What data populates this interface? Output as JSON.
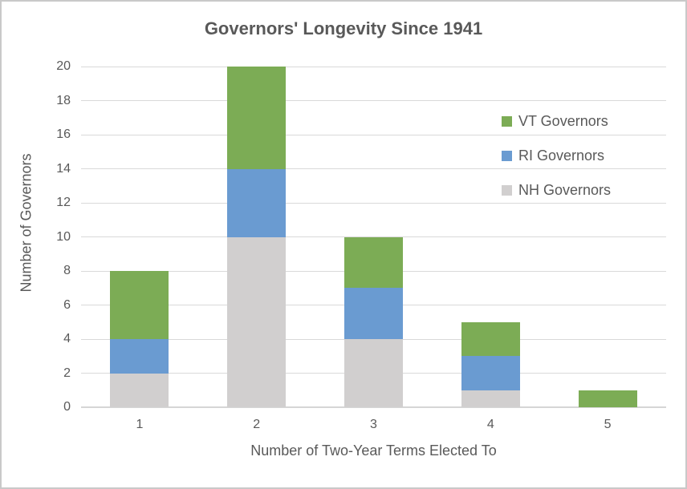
{
  "chart_data": {
    "type": "bar",
    "stacked": true,
    "title": "Governors' Longevity Since 1941",
    "xlabel": "Number of Two-Year Terms Elected To",
    "ylabel": "Number of Governors",
    "categories": [
      "1",
      "2",
      "3",
      "4",
      "5"
    ],
    "series": [
      {
        "name": "NH Governors",
        "color": "#d1cfcf",
        "values": [
          2,
          10,
          4,
          1,
          0
        ]
      },
      {
        "name": "RI Governors",
        "color": "#6a9bd1",
        "values": [
          2,
          4,
          3,
          2,
          0
        ]
      },
      {
        "name": "VT Governors",
        "color": "#7cac55",
        "values": [
          4,
          6,
          3,
          2,
          1
        ]
      }
    ],
    "legend": [
      {
        "label": "VT Governors",
        "color": "#7cac55"
      },
      {
        "label": "RI Governors",
        "color": "#6a9bd1"
      },
      {
        "label": "NH Governors",
        "color": "#d1cfcf"
      }
    ],
    "ylim": [
      0,
      20
    ],
    "ytick_step": 2,
    "grid": true,
    "legend_position": "upper-right",
    "style": {
      "text_color": "#595959",
      "gridline_color": "#d9d9d9",
      "axis_line_color": "#d6d6d6",
      "frame_border_color": "#c9c9c9"
    }
  }
}
